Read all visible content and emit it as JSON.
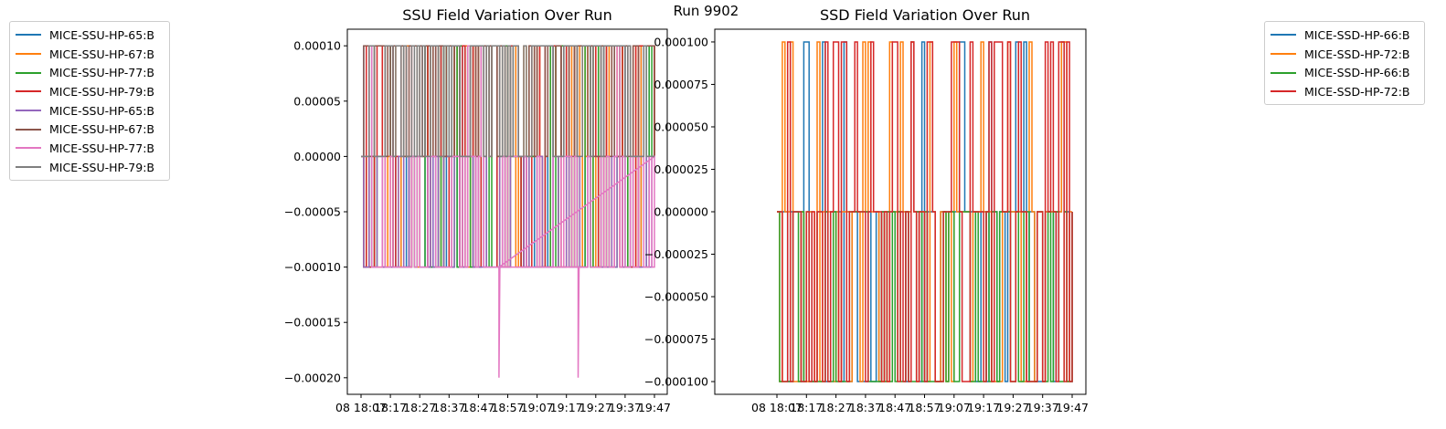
{
  "suptitle": "Run 9902",
  "chart_data": [
    {
      "type": "line",
      "title": "SSU Field Variation Over Run",
      "xlabel": "",
      "ylabel": "",
      "ylim": [
        -0.000215,
        0.000115
      ],
      "y_ticks": [
        "0.00010",
        "0.00005",
        "0.00000",
        "−0.00005",
        "−0.00010",
        "−0.00015",
        "−0.00020"
      ],
      "y_tick_values": [
        0.0001,
        5e-05,
        0,
        -5e-05,
        -0.0001,
        -0.00015,
        -0.0002
      ],
      "x_tick_labels": [
        "08 18:07",
        "18:17",
        "18:27",
        "18:37",
        "18:47",
        "18:57",
        "19:07",
        "19:17",
        "19:27",
        "19:37",
        "19:47"
      ],
      "x_range_minutes": [
        0,
        100
      ],
      "levels": [
        0.0001,
        0,
        -0.0001
      ],
      "extreme_dips": [
        {
          "x": 47,
          "y": -0.0002
        },
        {
          "x": 74,
          "y": -0.0002
        }
      ],
      "legend_position": "outside-left",
      "grid": false,
      "series": [
        {
          "name": "MICE-SSU-HP-65:B",
          "color": "#1f77b4"
        },
        {
          "name": "MICE-SSU-HP-67:B",
          "color": "#ff7f0e"
        },
        {
          "name": "MICE-SSU-HP-77:B",
          "color": "#2ca02c"
        },
        {
          "name": "MICE-SSU-HP-79:B",
          "color": "#d62728"
        },
        {
          "name": "MICE-SSU-HP-65:B",
          "color": "#9467bd"
        },
        {
          "name": "MICE-SSU-HP-67:B",
          "color": "#8c564b"
        },
        {
          "name": "MICE-SSU-HP-77:B",
          "color": "#e377c2"
        },
        {
          "name": "MICE-SSU-HP-79:B",
          "color": "#7f7f7f"
        }
      ]
    },
    {
      "type": "line",
      "title": "SSD Field Variation Over Run",
      "xlabel": "",
      "ylabel": "",
      "ylim": [
        -0.0001075,
        0.0001075
      ],
      "y_ticks": [
        "0.000100",
        "0.000075",
        "0.000050",
        "0.000025",
        "0.000000",
        "−0.000025",
        "−0.000050",
        "−0.000075",
        "−0.000100"
      ],
      "y_tick_values": [
        0.0001,
        7.5e-05,
        5e-05,
        2.5e-05,
        0,
        -2.5e-05,
        -5e-05,
        -7.5e-05,
        -0.0001
      ],
      "x_tick_labels": [
        "08 18:07",
        "18:17",
        "18:27",
        "18:37",
        "18:47",
        "18:57",
        "19:07",
        "19:17",
        "19:27",
        "19:37",
        "19:47"
      ],
      "x_range_minutes": [
        0,
        100
      ],
      "levels": [
        0.0001,
        0,
        -0.0001
      ],
      "legend_position": "outside-right",
      "grid": false,
      "series": [
        {
          "name": "MICE-SSD-HP-66:B",
          "color": "#1f77b4"
        },
        {
          "name": "MICE-SSD-HP-72:B",
          "color": "#ff7f0e"
        },
        {
          "name": "MICE-SSD-HP-66:B",
          "color": "#2ca02c"
        },
        {
          "name": "MICE-SSD-HP-72:B",
          "color": "#d62728"
        }
      ]
    }
  ]
}
